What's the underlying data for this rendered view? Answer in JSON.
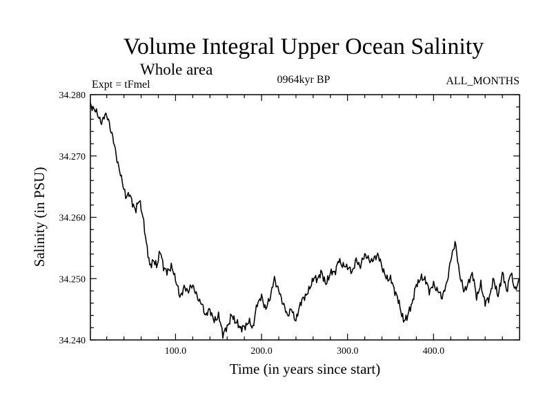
{
  "colors": {
    "background": "#ffffff",
    "line": "#000000"
  },
  "chart_data": {
    "type": "line",
    "title": "Volume Integral Upper Ocean Salinity",
    "subtitle": "Whole area",
    "expt_label": "Expt = tFmel",
    "center_label": "0964kyr BP",
    "right_label": "ALL_MONTHS",
    "xlabel": "Time (in years since start)",
    "ylabel": "Salinity (in PSU)",
    "xlim": [
      1,
      500
    ],
    "ylim": [
      34.24,
      34.28
    ],
    "x_ticks": [
      100,
      200,
      300,
      400
    ],
    "x_tick_labels": [
      "100.0",
      "200.0",
      "300.0",
      "400.0"
    ],
    "y_ticks": [
      34.24,
      34.25,
      34.26,
      34.27,
      34.28
    ],
    "y_tick_labels": [
      "34.240",
      "34.250",
      "34.260",
      "34.270",
      "34.280"
    ],
    "grid": false,
    "series": [
      {
        "name": "Salinity",
        "x": [
          1,
          5,
          10,
          14,
          18,
          22,
          26,
          30,
          34,
          38,
          42,
          46,
          50,
          54,
          58,
          62,
          66,
          70,
          74,
          78,
          82,
          86,
          90,
          95,
          100,
          105,
          110,
          115,
          120,
          125,
          130,
          135,
          140,
          145,
          150,
          155,
          160,
          165,
          170,
          175,
          180,
          185,
          190,
          195,
          200,
          205,
          210,
          215,
          220,
          225,
          230,
          235,
          240,
          245,
          250,
          255,
          260,
          265,
          270,
          275,
          280,
          285,
          290,
          295,
          300,
          305,
          310,
          315,
          320,
          325,
          330,
          335,
          340,
          345,
          350,
          355,
          360,
          365,
          370,
          375,
          380,
          385,
          390,
          395,
          400,
          405,
          410,
          415,
          420,
          425,
          430,
          435,
          440,
          445,
          450,
          455,
          460,
          465,
          470,
          475,
          480,
          485,
          490,
          495,
          500
        ],
        "values": [
          34.2783,
          34.2777,
          34.2767,
          34.2752,
          34.277,
          34.2758,
          34.2736,
          34.271,
          34.268,
          34.266,
          34.2632,
          34.264,
          34.2622,
          34.2612,
          34.263,
          34.26,
          34.256,
          34.252,
          34.253,
          34.252,
          34.2545,
          34.252,
          34.251,
          34.252,
          34.25,
          34.247,
          34.2485,
          34.248,
          34.249,
          34.247,
          34.246,
          34.244,
          34.245,
          34.243,
          34.244,
          34.241,
          34.242,
          34.244,
          34.243,
          34.242,
          34.242,
          34.243,
          34.242,
          34.246,
          34.247,
          34.245,
          34.247,
          34.25,
          34.248,
          34.246,
          34.244,
          34.245,
          34.243,
          34.246,
          34.247,
          34.248,
          34.25,
          34.25,
          34.251,
          34.249,
          34.251,
          34.251,
          34.253,
          34.252,
          34.252,
          34.251,
          34.253,
          34.252,
          34.254,
          34.253,
          34.253,
          34.254,
          34.252,
          34.25,
          34.25,
          34.248,
          34.246,
          34.243,
          34.244,
          34.246,
          34.249,
          34.25,
          34.25,
          34.248,
          34.249,
          34.248,
          34.247,
          34.249,
          34.253,
          34.256,
          34.251,
          34.248,
          34.249,
          34.251,
          34.247,
          34.249,
          34.246,
          34.247,
          34.25,
          34.247,
          34.251,
          34.248,
          34.251,
          34.248,
          34.25
        ]
      }
    ]
  }
}
